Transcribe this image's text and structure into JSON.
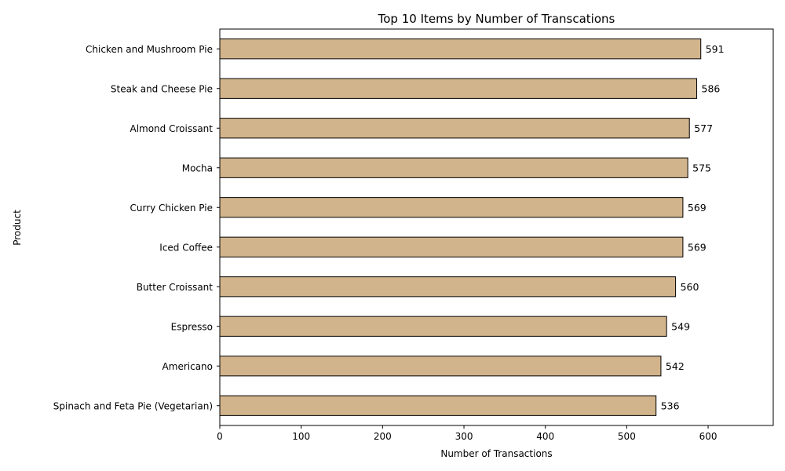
{
  "chart_data": {
    "type": "bar",
    "orientation": "horizontal",
    "title": "Top 10 Items by Number of Transcations",
    "xlabel": "Number of Transactions",
    "ylabel": "Product",
    "categories": [
      "Chicken and Mushroom Pie",
      "Steak and Cheese Pie",
      "Almond Croissant",
      "Mocha",
      "Curry Chicken Pie",
      "Iced Coffee",
      "Butter Croissant",
      "Espresso",
      "Americano",
      "Spinach and Feta Pie (Vegetarian)"
    ],
    "values": [
      591,
      586,
      577,
      575,
      569,
      569,
      560,
      549,
      542,
      536
    ],
    "value_labels": [
      "591",
      "586",
      "577",
      "575",
      "569",
      "569",
      "560",
      "549",
      "542",
      "536"
    ],
    "xlim": [
      0,
      680
    ],
    "xticks": [
      0,
      100,
      200,
      300,
      400,
      500,
      600
    ],
    "xtick_labels": [
      "0",
      "100",
      "200",
      "300",
      "400",
      "500",
      "600"
    ],
    "grid": false,
    "legend": "none",
    "bar_color": "#d2b48c",
    "bar_edge_color": "#000000"
  }
}
